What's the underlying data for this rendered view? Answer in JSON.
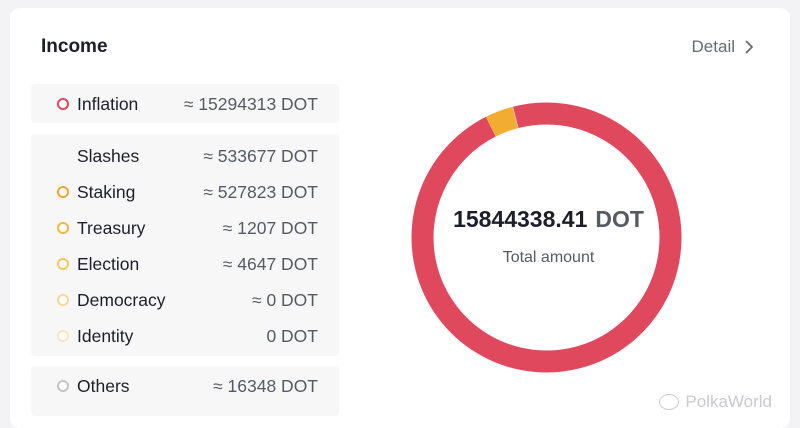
{
  "header": {
    "title": "Income",
    "detail_label": "Detail"
  },
  "groups": [
    {
      "items": [
        {
          "label": "Inflation",
          "value": "≈ 15294313 DOT",
          "dot_color": "#e0485e",
          "dot_fill": "#ffffff"
        }
      ]
    },
    {
      "items": [
        {
          "label": "Slashes",
          "value": "≈ 533677 DOT",
          "dot_color": null
        },
        {
          "label": "Staking",
          "value": "≈ 527823 DOT",
          "dot_color": "#f2a52d",
          "dot_fill": "#ffffff"
        },
        {
          "label": "Treasury",
          "value": "≈ 1207 DOT",
          "dot_color": "#f5b63f",
          "dot_fill": "#ffffff"
        },
        {
          "label": "Election",
          "value": "≈ 4647 DOT",
          "dot_color": "#f7c65f",
          "dot_fill": "#ffffff"
        },
        {
          "label": "Democracy",
          "value": "≈ 0 DOT",
          "dot_color": "#fad893",
          "dot_fill": "#ffffff"
        },
        {
          "label": "Identity",
          "value": "0 DOT",
          "dot_color": "#fde5ba",
          "dot_fill": "#ffffff"
        }
      ]
    },
    {
      "items": [
        {
          "label": "Others",
          "value": "≈ 16348 DOT",
          "dot_color": "#c4c4c8",
          "dot_fill": "#ffffff"
        }
      ]
    }
  ],
  "total": {
    "amount": "15844338.41",
    "unit": "DOT",
    "label": "Total amount"
  },
  "chart_data": {
    "type": "pie",
    "style": "donut",
    "categories": [
      "Inflation",
      "Slashes",
      "Others"
    ],
    "values": [
      15294313,
      533677,
      16348
    ],
    "colors": [
      "#e0485e",
      "#f2ac32",
      "#c4c4c8"
    ]
  },
  "watermark": {
    "text": "PolkaWorld"
  }
}
